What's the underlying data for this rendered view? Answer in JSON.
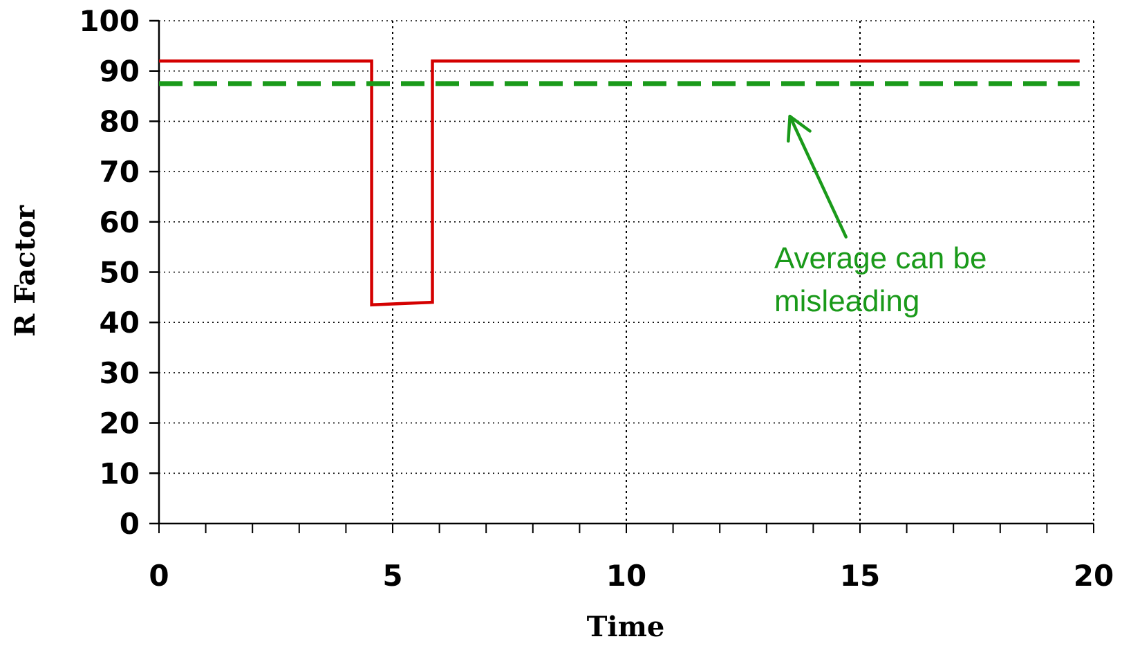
{
  "chart_data": {
    "type": "line",
    "title": "",
    "xlabel": "Time",
    "ylabel": "R Factor",
    "xlim": [
      0,
      20
    ],
    "ylim": [
      0,
      100
    ],
    "x_ticks": [
      0,
      5,
      10,
      15,
      20
    ],
    "y_ticks": [
      0,
      10,
      20,
      30,
      40,
      50,
      60,
      70,
      80,
      90,
      100
    ],
    "x_minor_tick_step": 1,
    "vertical_grid": [
      5,
      10,
      15,
      20
    ],
    "horizontal_grid": [
      10,
      20,
      30,
      40,
      50,
      60,
      70,
      80,
      90,
      100
    ],
    "grid": true,
    "grid_style": "dotted",
    "legend": "none",
    "series": [
      {
        "style": "solid",
        "color": "#d40000",
        "x": [
          0,
          4.55,
          4.55,
          5.85,
          5.85,
          19.7
        ],
        "y": [
          92,
          92,
          43.5,
          44,
          92,
          92
        ]
      },
      {
        "style": "dashed",
        "color": "#1a9a1a",
        "x": [
          0,
          19.7
        ],
        "y": [
          87.5,
          87.5
        ]
      }
    ],
    "annotations": [
      {
        "lines": [
          "Average can be",
          "misleading"
        ],
        "color": "#1a9a1a",
        "arrow_from": [
          14.7,
          57
        ],
        "arrow_to": [
          13.5,
          81
        ]
      }
    ]
  }
}
